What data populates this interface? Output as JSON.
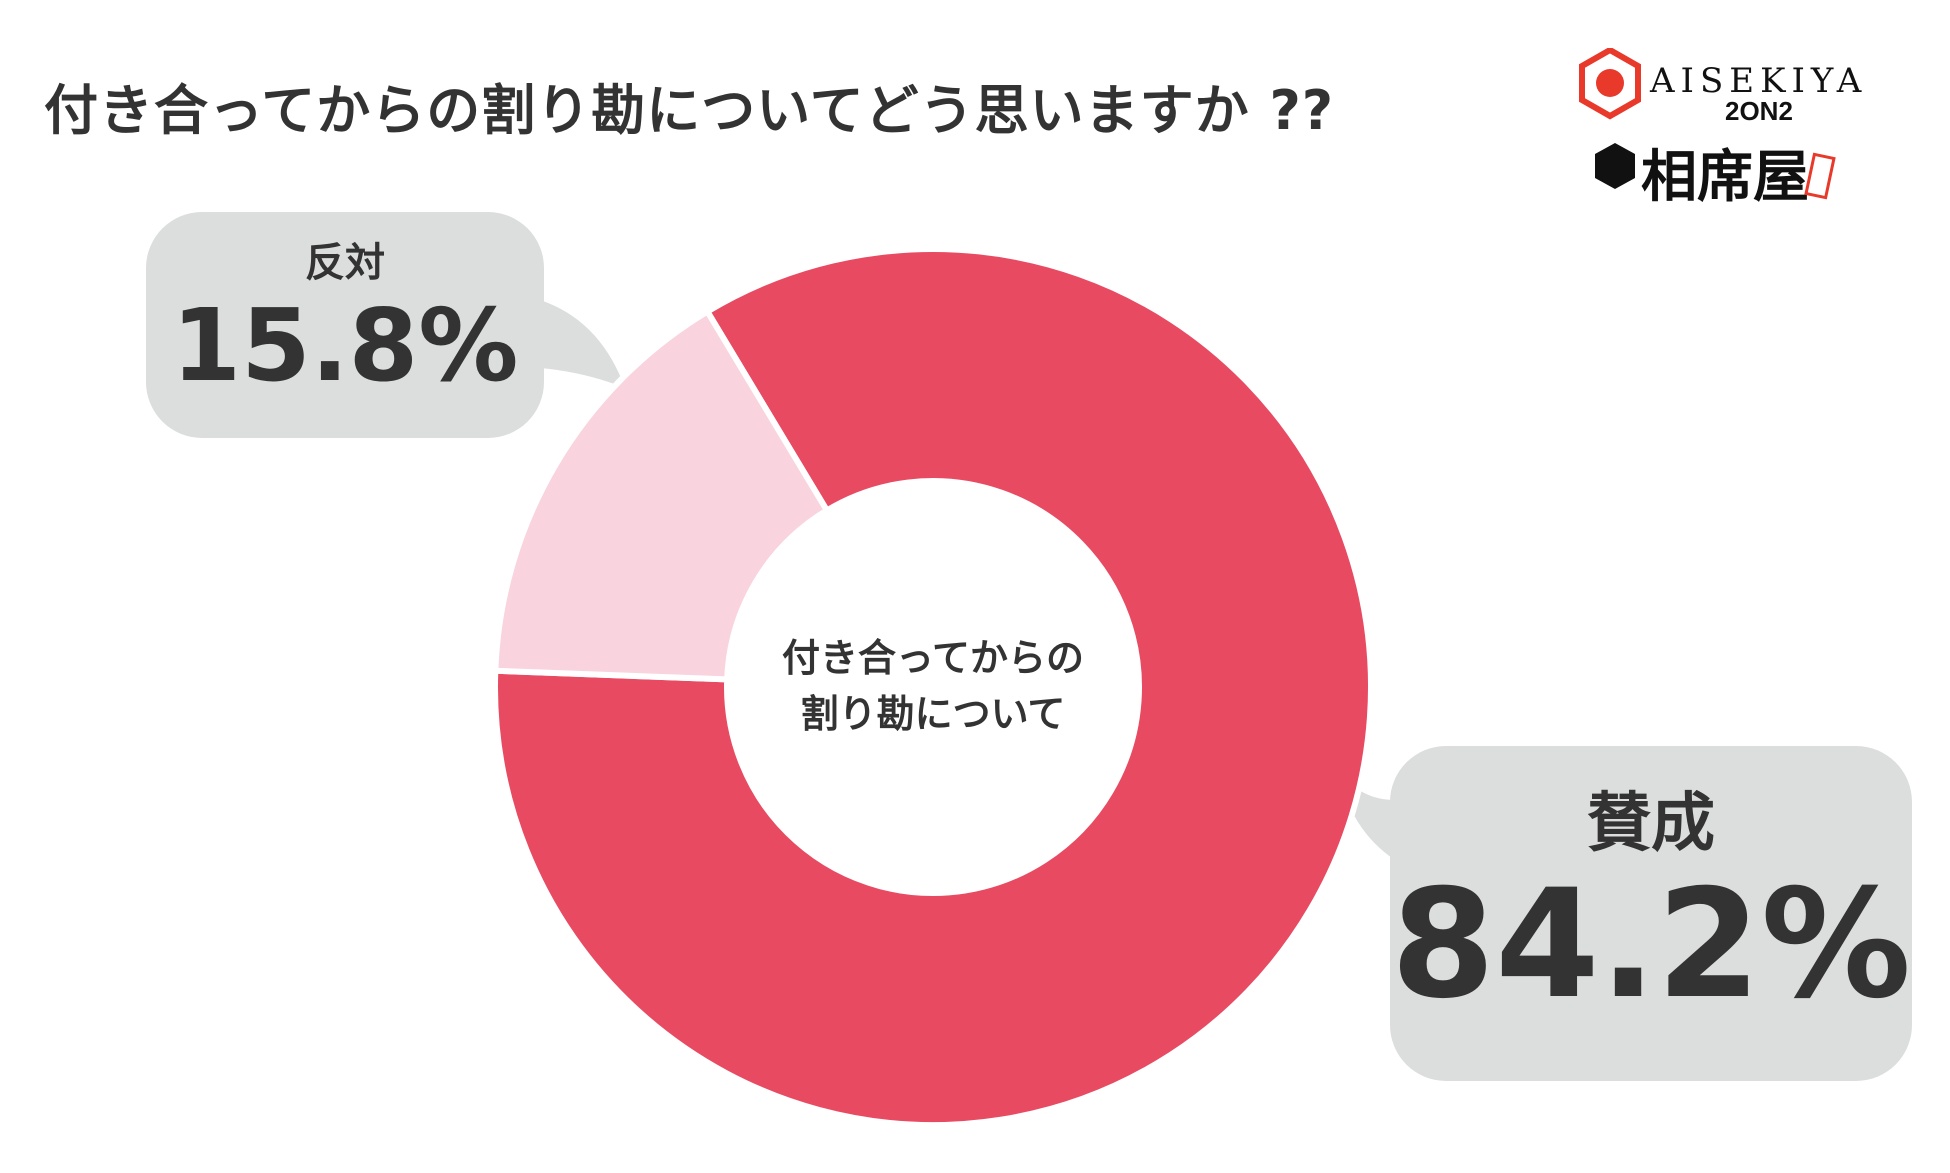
{
  "chart_data": {
    "type": "pie",
    "variant": "donut",
    "title": "付き合ってからの割り勘についてどう思いますか ??",
    "center_label": [
      "付き合ってからの",
      "割り勘について"
    ],
    "slices": [
      {
        "label": "賛成",
        "value": 84.2,
        "display": "84.2%",
        "color": "#e84a62"
      },
      {
        "label": "反対",
        "value": 15.8,
        "display": "15.8%",
        "color": "#f9d3dd"
      }
    ],
    "legend": "callout-bubbles"
  },
  "logo": {
    "brand_en": "AISEKIYA",
    "brand_sub": "2ON2",
    "brand_ja": "相席屋"
  },
  "colors": {
    "text": "#333333",
    "bubble": "#dcdddd",
    "logo_red": "#e8392b"
  }
}
